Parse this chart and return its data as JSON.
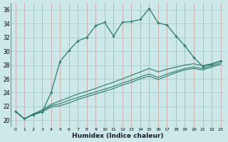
{
  "xlabel": "Humidex (Indice chaleur)",
  "background_color": "#cce8e8",
  "grid_color": "#aacccc",
  "line_color": "#2d7b6b",
  "xlim": [
    -0.5,
    23.5
  ],
  "ylim": [
    19,
    37
  ],
  "yticks": [
    20,
    22,
    24,
    26,
    28,
    30,
    32,
    34,
    36
  ],
  "xticks": [
    0,
    1,
    2,
    3,
    4,
    5,
    6,
    7,
    8,
    9,
    10,
    11,
    12,
    13,
    14,
    15,
    16,
    17,
    18,
    19,
    20,
    21,
    22,
    23
  ],
  "series": [
    {
      "x": [
        0,
        1,
        2,
        3,
        4,
        5,
        6,
        7,
        8,
        9,
        10,
        11,
        12,
        13,
        14,
        15,
        16,
        17,
        18,
        19,
        20,
        21,
        22,
        23
      ],
      "y": [
        21.3,
        20.2,
        20.8,
        21.2,
        24.0,
        28.5,
        30.1,
        31.5,
        32.0,
        33.7,
        34.2,
        32.2,
        34.2,
        34.3,
        34.6,
        36.2,
        34.1,
        33.8,
        32.2,
        30.8,
        29.1,
        27.8,
        28.1,
        28.6
      ],
      "markers": true
    },
    {
      "x": [
        0,
        1,
        2,
        3,
        4,
        5,
        6,
        7,
        8,
        9,
        10,
        11,
        12,
        13,
        14,
        15,
        16,
        17,
        18,
        19,
        20,
        21,
        22,
        23
      ],
      "y": [
        21.3,
        20.2,
        20.9,
        21.5,
        22.3,
        22.8,
        23.3,
        23.8,
        24.2,
        24.6,
        25.1,
        25.5,
        26.0,
        26.5,
        27.0,
        27.5,
        27.0,
        27.4,
        27.7,
        28.0,
        28.2,
        27.9,
        28.2,
        28.6
      ],
      "markers": false
    },
    {
      "x": [
        0,
        1,
        2,
        3,
        4,
        5,
        6,
        7,
        8,
        9,
        10,
        11,
        12,
        13,
        14,
        15,
        16,
        17,
        18,
        19,
        20,
        21,
        22,
        23
      ],
      "y": [
        21.3,
        20.2,
        20.9,
        21.3,
        22.1,
        22.4,
        22.9,
        23.3,
        23.7,
        24.1,
        24.5,
        24.9,
        25.4,
        25.8,
        26.3,
        26.7,
        26.2,
        26.7,
        27.1,
        27.5,
        27.7,
        27.5,
        27.9,
        28.3
      ],
      "markers": false
    },
    {
      "x": [
        0,
        1,
        2,
        3,
        4,
        5,
        6,
        7,
        8,
        9,
        10,
        11,
        12,
        13,
        14,
        15,
        16,
        17,
        18,
        19,
        20,
        21,
        22,
        23
      ],
      "y": [
        21.3,
        20.2,
        20.8,
        21.2,
        21.9,
        22.1,
        22.5,
        23.0,
        23.4,
        23.8,
        24.2,
        24.6,
        25.1,
        25.5,
        26.0,
        26.4,
        25.9,
        26.4,
        26.9,
        27.3,
        27.5,
        27.3,
        27.7,
        28.1
      ],
      "markers": false
    }
  ]
}
